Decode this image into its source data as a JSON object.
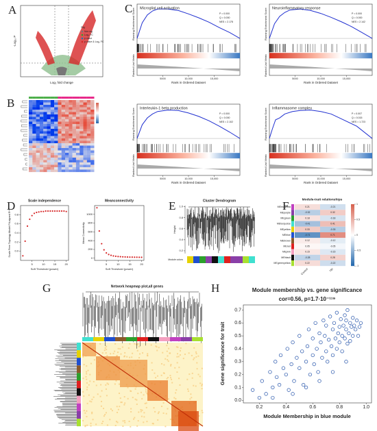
{
  "panel_labels": [
    "A",
    "B",
    "C",
    "D",
    "E",
    "F",
    "G",
    "H"
  ],
  "volcano": {
    "x_label": "Log₂ fold change",
    "y_label": "-Log₁₀ P",
    "legend_title": "Sig",
    "legend": [
      "Non sig",
      "Log₂ FC",
      "p value",
      "p value & Log₂ FC"
    ]
  },
  "gsea": {
    "y_label_top": "Running Enrichment Score",
    "y_label_bottom": "Ranked List Metric",
    "x_label": "Rank in Ordered Dataset",
    "xlim": [
      0,
      20000
    ],
    "ylim": [
      -0.1,
      0.7
    ],
    "xticks": [
      5000,
      {
        "value": 10000,
        "label": "10,000"
      },
      {
        "value": 15000,
        "label": "15,000"
      }
    ],
    "panels": [
      {
        "title": "Microglial cell activation",
        "stats": [
          "P = 0.000",
          "Q = 0.000",
          "NES = 2.178"
        ],
        "x": [
          0,
          1000,
          2000,
          3000,
          4000,
          6000,
          8000,
          10000,
          12000,
          14000,
          16000,
          18000,
          20000
        ],
        "es": [
          0,
          0.32,
          0.48,
          0.56,
          0.6,
          0.6,
          0.57,
          0.5,
          0.42,
          0.33,
          0.22,
          0.12,
          0
        ]
      },
      {
        "title": "Neuroinflammatory response",
        "stats": [
          "P = 0.000",
          "Q = 0.000",
          "NES = 2.142"
        ],
        "x": [
          0,
          1000,
          2000,
          3000,
          4000,
          6000,
          8000,
          10000,
          12000,
          14000,
          16000,
          18000,
          20000
        ],
        "es": [
          0,
          0.3,
          0.45,
          0.53,
          0.58,
          0.6,
          0.57,
          0.51,
          0.43,
          0.34,
          0.24,
          0.12,
          0
        ]
      },
      {
        "title": "Interleukin-1 beta production",
        "stats": [
          "P = 0.000",
          "Q = 0.000",
          "NES = 2.102"
        ],
        "x": [
          0,
          1000,
          2000,
          3000,
          4000,
          6000,
          8000,
          10000,
          12000,
          14000,
          16000,
          18000,
          20000
        ],
        "es": [
          0,
          0.28,
          0.42,
          0.5,
          0.55,
          0.58,
          0.57,
          0.52,
          0.45,
          0.36,
          0.25,
          0.13,
          0
        ]
      },
      {
        "title": "Inflammasome complex",
        "stats": [
          "P = 0.007",
          "Q = 0.015",
          "NES = 1.723"
        ],
        "x": [
          0,
          600,
          1200,
          2000,
          3000,
          4500,
          6000,
          8000,
          10000,
          12000,
          14000,
          17000,
          20000
        ],
        "es": [
          0,
          0.2,
          0.38,
          0.42,
          0.5,
          0.55,
          0.57,
          0.58,
          0.55,
          0.5,
          0.4,
          0.25,
          0
        ]
      }
    ]
  },
  "scale_independence": {
    "title": "Scale independence",
    "x_label": "Soft Threshold (power)",
    "y_label": "Scale Free Topology Model Fit,signed R^2",
    "x": [
      1,
      2,
      3,
      4,
      5,
      6,
      7,
      8,
      9,
      10,
      11,
      12,
      13,
      14,
      15,
      16,
      17,
      18,
      19,
      20
    ],
    "values": [
      -0.1,
      0.22,
      0.55,
      0.7,
      0.78,
      0.83,
      0.85,
      0.86,
      0.87,
      0.87,
      0.88,
      0.88,
      0.88,
      0.88,
      0.88,
      0.88,
      0.88,
      0.88,
      0.88,
      0.87
    ],
    "xlim": [
      0,
      21
    ],
    "ylim": [
      -0.2,
      1
    ],
    "xticks": [
      5,
      10,
      15,
      20
    ],
    "yticks": [
      {
        "value": 0,
        "label": "0.0"
      },
      0.2,
      0.4,
      0.6,
      0.8
    ]
  },
  "mean_connectivity": {
    "title": "Meanconnectivity",
    "x_label": "Soft Threshold (power)",
    "y_label": "Mean Connectivity",
    "x": [
      1,
      2,
      3,
      4,
      5,
      6,
      7,
      8,
      9,
      10,
      11,
      12,
      13,
      14,
      15,
      16,
      17,
      18,
      19,
      20
    ],
    "values": [
      1150,
      620,
      330,
      190,
      120,
      85,
      65,
      52,
      44,
      38,
      34,
      31,
      28,
      26,
      25,
      24,
      23,
      22,
      21,
      20
    ],
    "xlim": [
      0,
      21
    ],
    "ylim": [
      -50,
      1200
    ],
    "xticks": [
      5,
      10,
      15,
      20
    ],
    "yticks": [
      0,
      200,
      400,
      600,
      800,
      1000
    ]
  },
  "dendrogram": {
    "title": "Cluster Dendrogram",
    "y_label": "Height",
    "module_label": "Module colors",
    "ylim": [
      0.15,
      1.02
    ],
    "yticks": [
      0.2,
      0.4,
      0.6,
      0.8,
      {
        "value": 1,
        "label": "1.0"
      }
    ]
  },
  "module_trait": {
    "title": "Module-trait relationships",
    "rows": [
      "MEmagenta",
      "MEpurple",
      "MEgreen",
      "MEturquoise",
      "MEyellow",
      "MEblue",
      "MEbrown",
      "MEred",
      "MEpink",
      "MEblack",
      "MEgreenyellow"
    ],
    "row_colors": [
      "#c040c0",
      "#8a3fa8",
      "#2ca02c",
      "#40e0d0",
      "#e6d200",
      "#1f4fd0",
      "#8b5a2b",
      "#e02020",
      "#f4a0c0",
      "#111111",
      "#a8e030"
    ],
    "columns": [
      "Control",
      "TBI"
    ],
    "values": [
      [
        0.21,
        -0.21
      ],
      [
        -0.32,
        0.32
      ],
      [
        0.18,
        -0.18
      ],
      [
        -0.41,
        0.41
      ],
      [
        0.33,
        -0.33
      ],
      [
        -0.71,
        0.71
      ],
      [
        0.12,
        -0.12
      ],
      [
        0.05,
        -0.05
      ],
      [
        0.15,
        -0.15
      ],
      [
        -0.28,
        0.28
      ],
      [
        0.22,
        -0.22
      ]
    ],
    "clim": [
      -1,
      1
    ],
    "colorbar_ticks": [
      1,
      0.5,
      0,
      -0.5,
      -1
    ]
  },
  "network_heatmap": {
    "title": "Network heapmap plot,all genes"
  },
  "chart_data": {
    "type": "scatter",
    "title": "Module membership vs. gene significance",
    "subtitle": "cor=0.56, p=1.7·10⁻¹¹⁹",
    "x_label": "Module Membership in blue module",
    "y_label": "Gene significance for trait",
    "color": "#1f4fa8",
    "xlim": [
      0.08,
      1.04
    ],
    "ylim": [
      -0.02,
      0.74
    ],
    "xticks": [
      0.2,
      0.4,
      0.6,
      0.8,
      {
        "value": 1,
        "label": "1.0"
      }
    ],
    "yticks": [
      {
        "value": 0,
        "label": "0.0"
      },
      0.1,
      0.2,
      0.3,
      0.4,
      0.5,
      0.6,
      0.7
    ],
    "x": [
      0.15,
      0.2,
      0.22,
      0.25,
      0.28,
      0.3,
      0.32,
      0.33,
      0.35,
      0.36,
      0.38,
      0.4,
      0.41,
      0.42,
      0.44,
      0.45,
      0.46,
      0.48,
      0.5,
      0.5,
      0.52,
      0.53,
      0.55,
      0.56,
      0.57,
      0.58,
      0.6,
      0.6,
      0.61,
      0.62,
      0.63,
      0.64,
      0.65,
      0.66,
      0.67,
      0.68,
      0.69,
      0.7,
      0.7,
      0.71,
      0.72,
      0.73,
      0.74,
      0.75,
      0.75,
      0.76,
      0.77,
      0.78,
      0.78,
      0.79,
      0.8,
      0.8,
      0.81,
      0.82,
      0.82,
      0.83,
      0.84,
      0.84,
      0.85,
      0.85,
      0.86,
      0.86,
      0.87,
      0.88,
      0.88,
      0.89,
      0.9,
      0.9,
      0.91,
      0.92,
      0.93,
      0.94,
      0.95,
      0.96,
      0.3,
      0.45,
      0.55,
      0.65,
      0.75,
      0.85
    ],
    "values": [
      0.08,
      0.02,
      0.15,
      0.05,
      0.22,
      0.1,
      0.3,
      0.18,
      0.12,
      0.35,
      0.25,
      0.2,
      0.4,
      0.08,
      0.28,
      0.45,
      0.15,
      0.33,
      0.25,
      0.5,
      0.38,
      0.12,
      0.3,
      0.42,
      0.55,
      0.2,
      0.35,
      0.48,
      0.28,
      0.6,
      0.4,
      0.22,
      0.52,
      0.45,
      0.33,
      0.62,
      0.5,
      0.38,
      0.58,
      0.3,
      0.47,
      0.65,
      0.42,
      0.55,
      0.35,
      0.6,
      0.48,
      0.68,
      0.4,
      0.52,
      0.57,
      0.45,
      0.63,
      0.5,
      0.38,
      0.58,
      0.66,
      0.48,
      0.55,
      0.62,
      0.44,
      0.7,
      0.52,
      0.6,
      0.46,
      0.57,
      0.64,
      0.5,
      0.58,
      0.55,
      0.62,
      0.5,
      0.57,
      0.6,
      0.02,
      0.05,
      0.1,
      0.15,
      0.22,
      0.3
    ]
  }
}
